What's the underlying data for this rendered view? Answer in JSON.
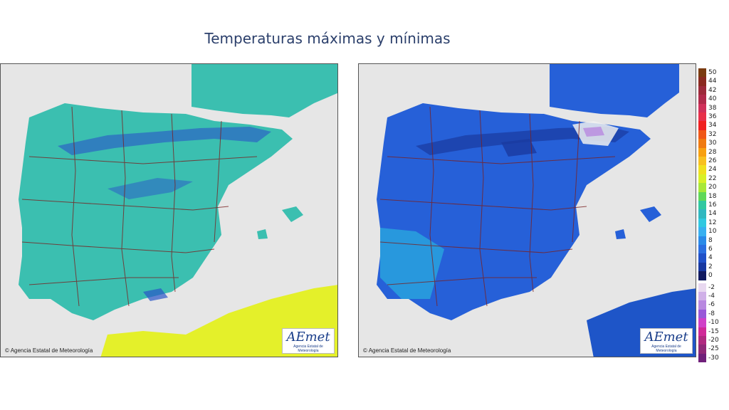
{
  "title": "Temperaturas máximas y mínimas",
  "maps": [
    {
      "id": "max",
      "credit": "Agencia Estatal de Meteorología",
      "logo": "AEmet",
      "logo_sub": "Agencia Estatal de Meteorología",
      "land_color": "#3bbfb0",
      "high_color": "#2a55c8",
      "south_color": "#e4f02a"
    },
    {
      "id": "min",
      "credit": "Agencia Estatal de Meteorología",
      "logo": "AEmet",
      "logo_sub": "Agencia Estatal de Meteorología",
      "land_color": "#2660d8",
      "high_color": "#1a3aa0",
      "south_color": "#1e55c8"
    }
  ],
  "legend": {
    "labels": [
      "50",
      "44",
      "42",
      "40",
      "38",
      "36",
      "34",
      "32",
      "30",
      "28",
      "26",
      "24",
      "22",
      "20",
      "18",
      "16",
      "14",
      "12",
      "10",
      "8",
      "6",
      "4",
      "2",
      "0",
      "-2",
      "-4",
      "-6",
      "-8",
      "-10",
      "-15",
      "-20",
      "-25",
      "-30"
    ],
    "colors": [
      "#7a3b10",
      "#8a2a20",
      "#9c2a3a",
      "#b02a4a",
      "#d0305a",
      "#e8304a",
      "#f02020",
      "#f05818",
      "#f07a10",
      "#f8a010",
      "#f8c020",
      "#f0e020",
      "#d8f028",
      "#a8e838",
      "#60d858",
      "#30c8a0",
      "#30b8c0",
      "#30c8e0",
      "#38b0f0",
      "#2a8ae8",
      "#2a6ee0",
      "#2050c8",
      "#1838a0",
      "#101a60",
      "#e8d8f0",
      "#d0b0e8",
      "#b888e0",
      "#9858d8",
      "#d040c8",
      "#d02898",
      "#b02880",
      "#902878",
      "#70207a"
    ]
  }
}
